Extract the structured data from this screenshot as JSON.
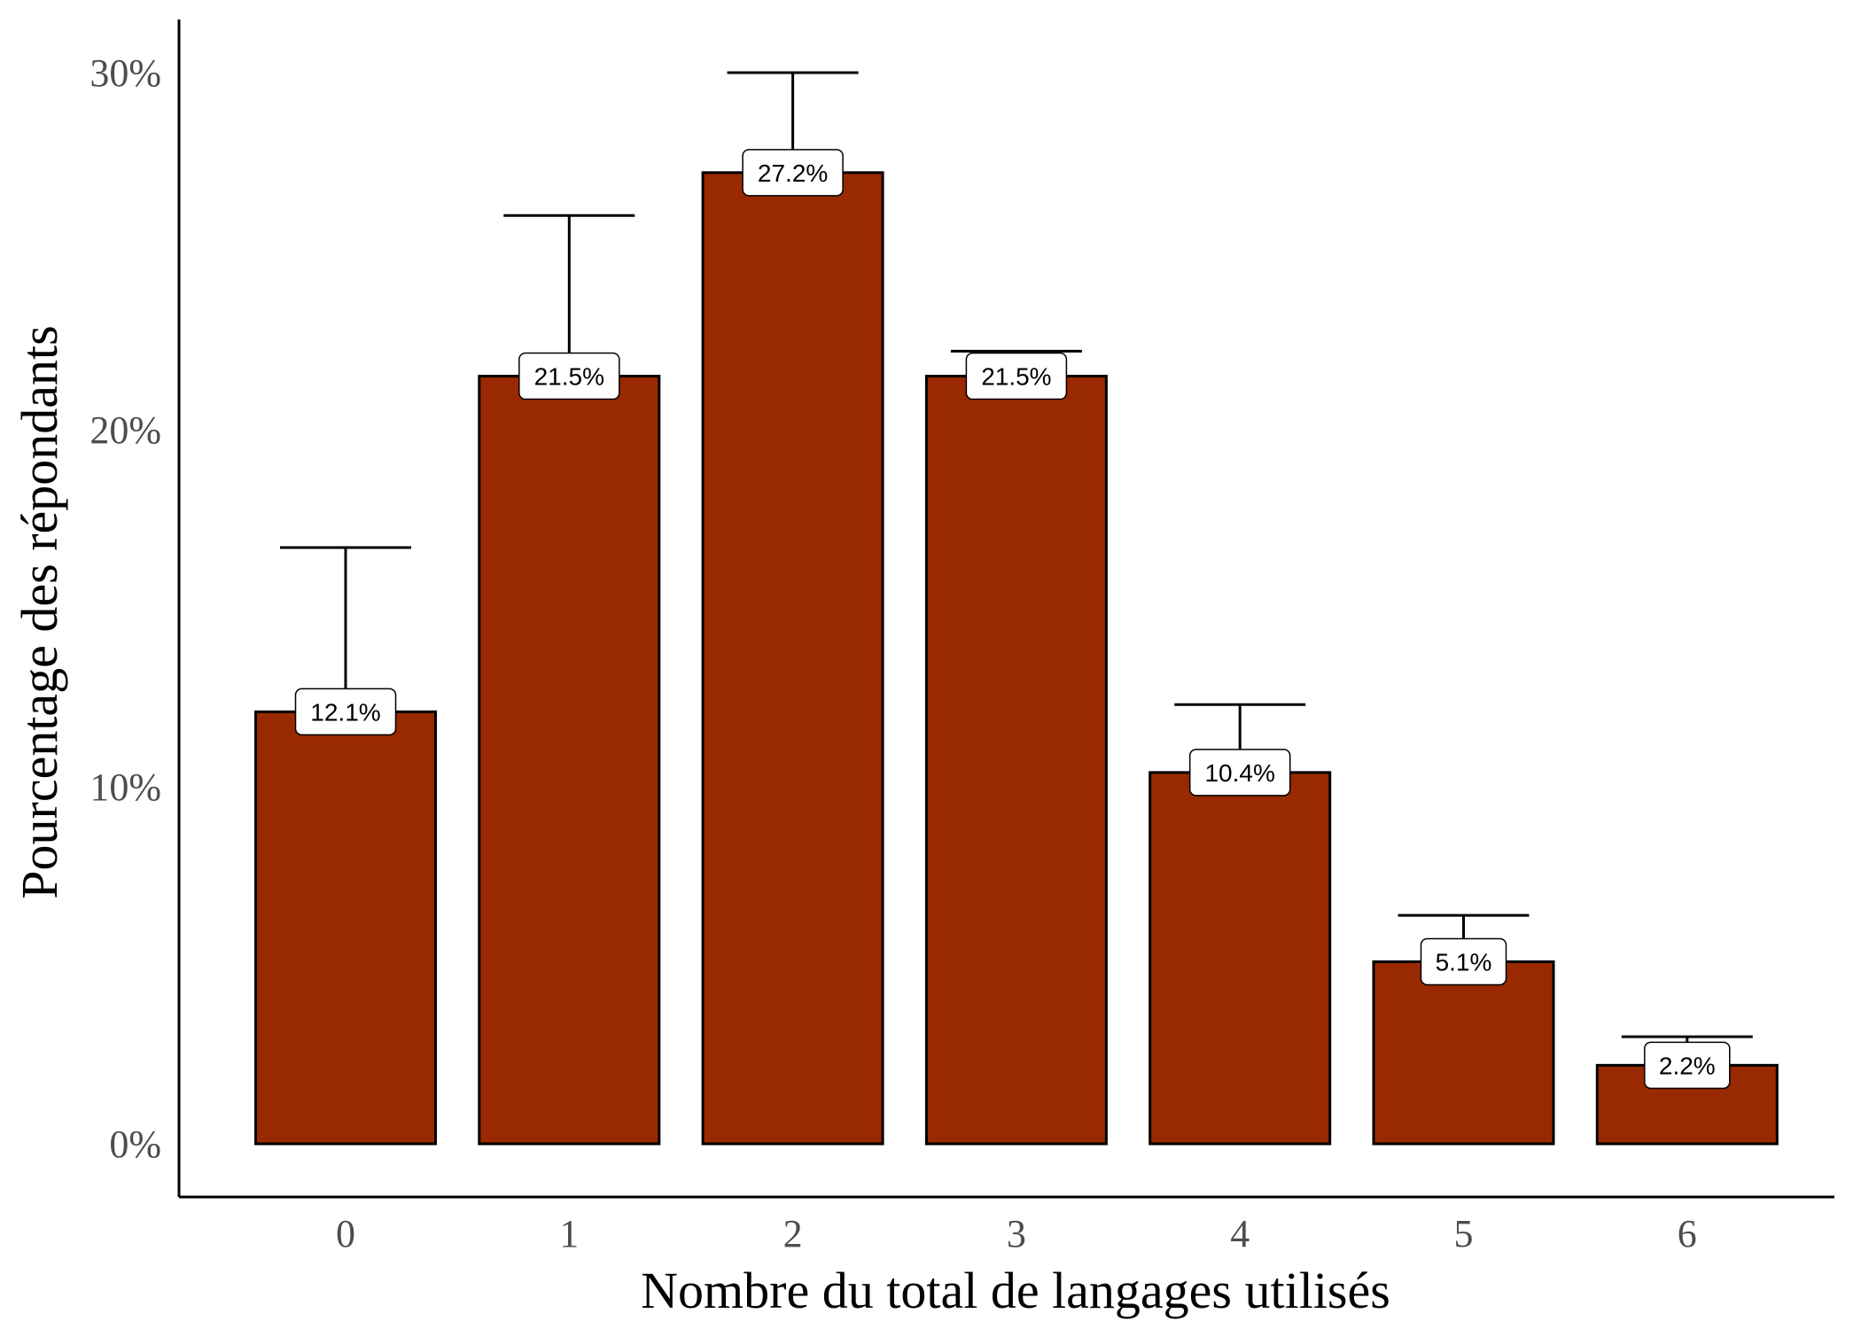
{
  "chart_data": {
    "type": "bar",
    "categories": [
      "0",
      "1",
      "2",
      "3",
      "4",
      "5",
      "6"
    ],
    "values": [
      12.1,
      21.5,
      27.2,
      21.5,
      10.4,
      5.1,
      2.2
    ],
    "error_upper": [
      16.7,
      26.0,
      30.0,
      22.2,
      12.3,
      6.4,
      3.0
    ],
    "data_labels": [
      "12.1%",
      "21.5%",
      "27.2%",
      "21.5%",
      "10.4%",
      "5.1%",
      "2.2%"
    ],
    "xlabel": "Nombre du total de langages utilisés",
    "ylabel": "Pourcentage des répondants",
    "ylim": [
      -1.5,
      31.5
    ],
    "yticks": [
      0,
      10,
      20,
      30
    ],
    "ytick_labels": [
      "0%",
      "10%",
      "20%",
      "30%"
    ],
    "grid": false,
    "legend": "none",
    "colors": {
      "bar": "#992900",
      "outline": "#000000",
      "label_box": "#ffffff"
    }
  }
}
